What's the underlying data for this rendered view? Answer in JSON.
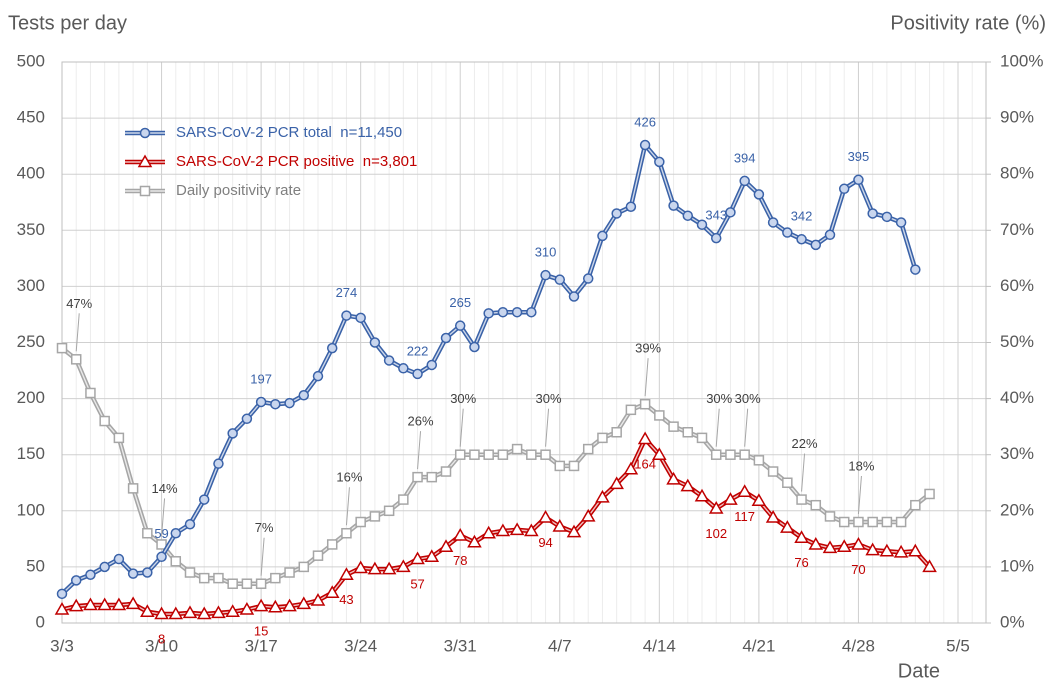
{
  "chart_data": {
    "type": "line",
    "y_title": "Tests per day",
    "y2_title": "Positivity rate (%)",
    "x_title": "Date",
    "categories": [
      "3/3",
      null,
      null,
      null,
      null,
      null,
      null,
      "3/10",
      null,
      null,
      null,
      null,
      null,
      null,
      "3/17",
      null,
      null,
      null,
      null,
      null,
      null,
      "3/24",
      null,
      null,
      null,
      null,
      null,
      null,
      "3/31",
      null,
      null,
      null,
      null,
      null,
      null,
      "4/7",
      null,
      null,
      null,
      null,
      null,
      null,
      "4/14",
      null,
      null,
      null,
      null,
      null,
      null,
      "4/21",
      null,
      null,
      null,
      null,
      null,
      null,
      "4/28",
      null,
      null,
      null,
      null,
      null,
      null,
      "5/5"
    ],
    "ylim": [
      0,
      500
    ],
    "yticks": [
      0,
      50,
      100,
      150,
      200,
      250,
      300,
      350,
      400,
      450,
      500
    ],
    "y2lim": [
      0,
      100
    ],
    "y2ticks": [
      {
        "value": 0,
        "label": "0%"
      },
      {
        "value": 10,
        "label": "10%"
      },
      {
        "value": 20,
        "label": "20%"
      },
      {
        "value": 30,
        "label": "30%"
      },
      {
        "value": 40,
        "label": "40%"
      },
      {
        "value": 50,
        "label": "50%"
      },
      {
        "value": 60,
        "label": "60%"
      },
      {
        "value": 70,
        "label": "70%"
      },
      {
        "value": 80,
        "label": "80%"
      },
      {
        "value": 90,
        "label": "90%"
      },
      {
        "value": 100,
        "label": "100%"
      }
    ],
    "grid": true,
    "series": [
      {
        "name": "SARS-CoV-2 PCR total  n=11,450",
        "color": "#3a62a8",
        "marker": "circle",
        "values": [
          26,
          38,
          43,
          50,
          57,
          44,
          45,
          59,
          80,
          88,
          110,
          142,
          169,
          182,
          197,
          195,
          196,
          203,
          220,
          245,
          274,
          272,
          250,
          234,
          227,
          222,
          230,
          254,
          265,
          246,
          276,
          277,
          277,
          277,
          310,
          306,
          291,
          307,
          345,
          365,
          371,
          426,
          411,
          372,
          363,
          355,
          343,
          366,
          394,
          382,
          357,
          348,
          342,
          337,
          346,
          387,
          395,
          365,
          362,
          357,
          315,
          null,
          null,
          null
        ],
        "value_labels": [
          null,
          null,
          null,
          null,
          null,
          null,
          null,
          "59",
          null,
          null,
          null,
          null,
          null,
          null,
          "197",
          null,
          null,
          null,
          null,
          null,
          "274",
          null,
          null,
          null,
          null,
          "222",
          null,
          null,
          "265",
          null,
          null,
          null,
          null,
          null,
          "310",
          null,
          null,
          null,
          null,
          null,
          null,
          "426",
          null,
          null,
          null,
          null,
          "343",
          null,
          "394",
          null,
          null,
          null,
          "342",
          null,
          null,
          null,
          "395",
          null,
          null,
          null,
          null,
          null,
          null,
          null
        ]
      },
      {
        "name": "SARS-CoV-2 PCR positive  n=3,801",
        "color": "#c00000",
        "marker": "triangle",
        "values": [
          12,
          15,
          16,
          16,
          16,
          17,
          10,
          8,
          8,
          9,
          8,
          9,
          10,
          12,
          15,
          14,
          15,
          17,
          20,
          27,
          43,
          49,
          48,
          48,
          50,
          57,
          59,
          68,
          78,
          72,
          80,
          82,
          83,
          82,
          94,
          86,
          81,
          95,
          112,
          124,
          137,
          164,
          150,
          128,
          122,
          113,
          102,
          110,
          117,
          109,
          94,
          85,
          76,
          70,
          67,
          68,
          70,
          65,
          64,
          63,
          64,
          50,
          null,
          null
        ],
        "value_labels": [
          null,
          null,
          null,
          null,
          null,
          null,
          null,
          "8",
          null,
          null,
          null,
          null,
          null,
          null,
          "15",
          null,
          null,
          null,
          null,
          null,
          "43",
          null,
          null,
          null,
          null,
          "57",
          null,
          null,
          "78",
          null,
          null,
          null,
          null,
          null,
          "94",
          null,
          null,
          null,
          null,
          null,
          null,
          "164",
          null,
          null,
          null,
          null,
          "102",
          null,
          "117",
          null,
          null,
          null,
          "76",
          null,
          null,
          null,
          "70",
          null,
          null,
          null,
          null,
          null,
          null,
          null
        ]
      },
      {
        "name": "Daily positivity rate",
        "color": "#a6a6a6",
        "marker": "square",
        "axis": "y2",
        "values": [
          49,
          47,
          41,
          36,
          33,
          24,
          16,
          14,
          11,
          9,
          8,
          8,
          7,
          7,
          7,
          8,
          9,
          10,
          12,
          14,
          16,
          18,
          19,
          20,
          22,
          26,
          26,
          27,
          30,
          30,
          30,
          30,
          31,
          30,
          30,
          28,
          28,
          31,
          33,
          34,
          38,
          39,
          37,
          35,
          34,
          33,
          30,
          30,
          30,
          29,
          27,
          25,
          22,
          21,
          19,
          18,
          18,
          18,
          18,
          18,
          21,
          23,
          null,
          null
        ],
        "value_labels": [
          null,
          "47%",
          null,
          null,
          null,
          null,
          null,
          "14%",
          null,
          null,
          null,
          null,
          null,
          null,
          "7%",
          null,
          null,
          null,
          null,
          null,
          "16%",
          null,
          null,
          null,
          null,
          "26%",
          null,
          null,
          "30%",
          null,
          null,
          null,
          null,
          null,
          "30%",
          null,
          null,
          null,
          null,
          null,
          null,
          "39%",
          null,
          null,
          null,
          null,
          "30%",
          null,
          "30%",
          null,
          null,
          null,
          "22%",
          null,
          null,
          null,
          "18%",
          null,
          null,
          null,
          null,
          null,
          null,
          null
        ]
      }
    ]
  }
}
